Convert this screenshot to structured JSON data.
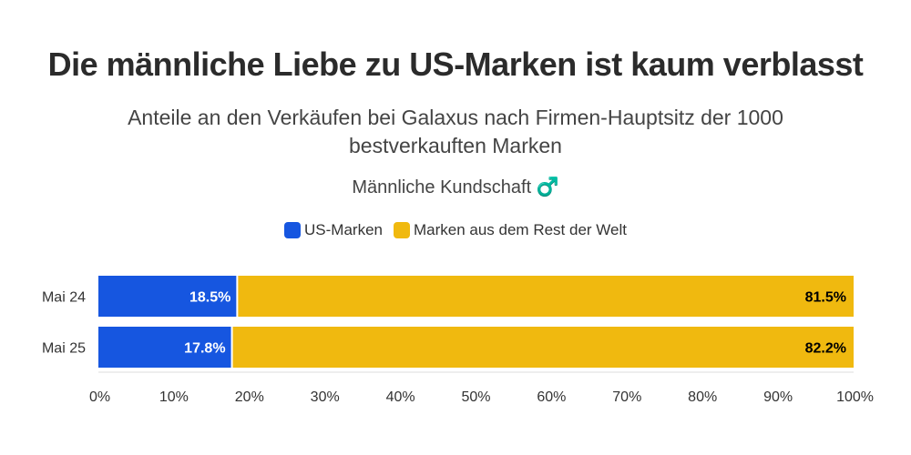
{
  "title": "Die männliche Liebe zu US-Marken ist kaum verblasst",
  "subtitle": "Anteile an den Verkäufen bei Galaxus nach Firmen-Hauptsitz der 1000 bestverkauften Marken",
  "subsubtitle": "Männliche Kundschaft ♂️",
  "colors": {
    "us": "#1656e0",
    "rest": "#f0b90f",
    "label_on_us": "#ffffff",
    "label_on_rest": "#000000"
  },
  "chart_data": {
    "type": "bar",
    "orientation": "horizontal",
    "stacked": true,
    "categories": [
      "Mai 24",
      "Mai 25"
    ],
    "series": [
      {
        "name": "US-Marken",
        "values": [
          18.5,
          17.8
        ],
        "labels": [
          "18.5%",
          "17.8%"
        ]
      },
      {
        "name": "Marken aus dem Rest der Welt",
        "values": [
          81.5,
          82.2
        ],
        "labels": [
          "81.5%",
          "82.2%"
        ]
      }
    ],
    "xlim": [
      0,
      100
    ],
    "x_ticks": [
      "0%",
      "10%",
      "20%",
      "30%",
      "40%",
      "50%",
      "60%",
      "70%",
      "80%",
      "90%",
      "100%"
    ],
    "legend_position": "top",
    "grid": false
  }
}
